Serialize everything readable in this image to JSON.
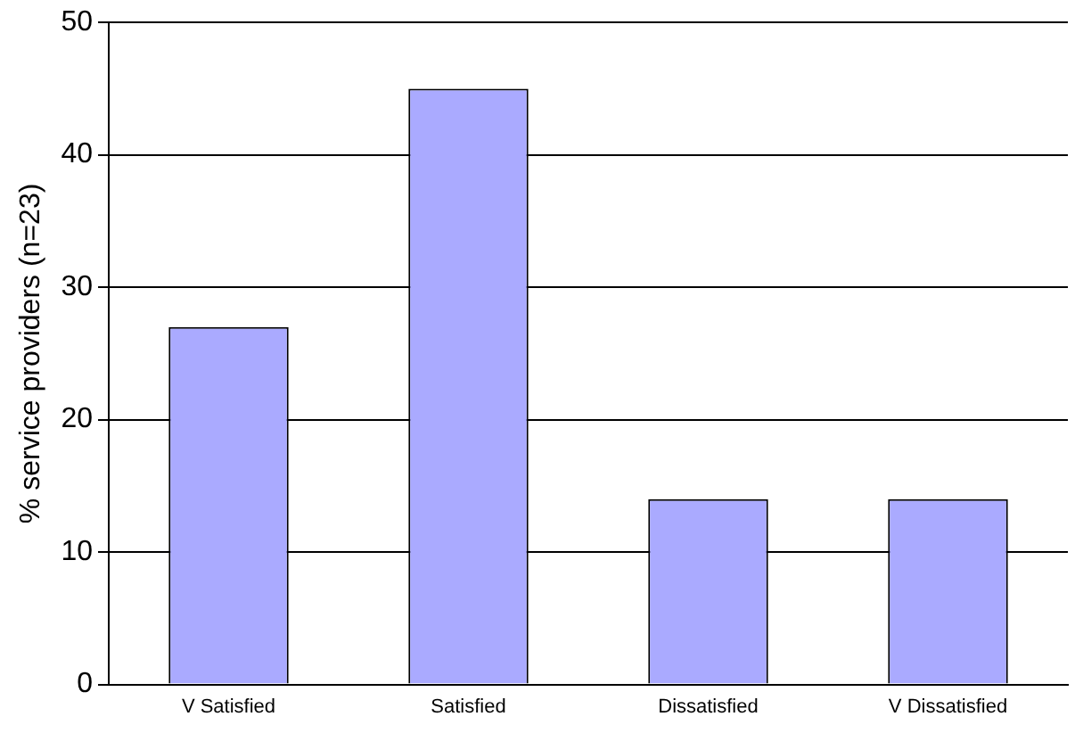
{
  "chart_data": {
    "type": "bar",
    "ylabel": "% service providers (n=23)",
    "categories": [
      "V Satisfied",
      "Satisfied",
      "Dissatisfied",
      "V Dissatisfied"
    ],
    "values": [
      27,
      45,
      14,
      14
    ],
    "color": "#aaaaff",
    "ylim": [
      0,
      50
    ],
    "yticks": [
      0,
      10,
      20,
      30,
      40,
      50
    ],
    "grid": "y"
  }
}
